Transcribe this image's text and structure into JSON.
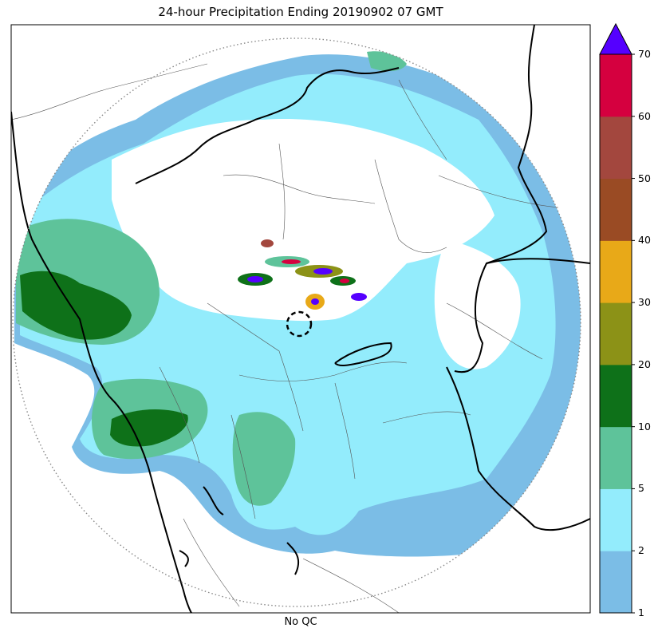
{
  "title": "24-hour Precipitation Ending 20190902 07 GMT",
  "xlabel": "No QC",
  "colorbar": {
    "ticks": [
      "1",
      "2",
      "5",
      "10",
      "20",
      "30",
      "40",
      "50",
      "60",
      "70"
    ],
    "colors": [
      "#7bbde6",
      "#93ecfc",
      "#5ec39a",
      "#0e7119",
      "#8c9217",
      "#e8a918",
      "#9a4b24",
      "#a3473e",
      "#d5003f"
    ],
    "extend_color": "#5500ff"
  },
  "legend_colors": {
    "border_state": "#000000",
    "border_district": "#555555",
    "range_ring": "#888888"
  }
}
